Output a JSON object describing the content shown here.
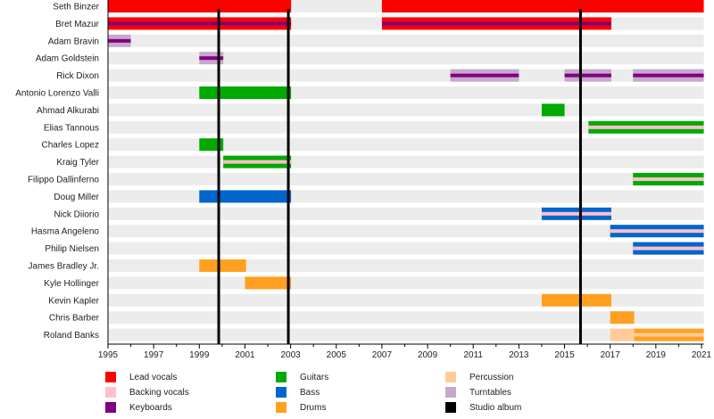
{
  "chart_data": {
    "type": "timeline",
    "title": "",
    "xlabel": "",
    "ylabel": "",
    "xlim": [
      1995,
      2021.1
    ],
    "x_ticks": [
      "1995",
      "1997",
      "1999",
      "2001",
      "2003",
      "2005",
      "2007",
      "2009",
      "2011",
      "2013",
      "2015",
      "2017",
      "2019",
      "2021"
    ],
    "grid": "alternating row bands",
    "colors": {
      "Lead vocals": "#ff0000",
      "Backing vocals": "#ffc0cb",
      "Keyboards": "#800080",
      "Guitars": "#00aa00",
      "Bass": "#0066cc",
      "Drums": "#ffa020",
      "Percussion": "#ffcc99",
      "Turntables": "#c8a8cc",
      "Studio album": "#000000"
    },
    "members": [
      {
        "name": "Seth Binzer",
        "bars": [
          {
            "role": "Lead vocals",
            "start": 1995,
            "end": 2003.02
          },
          {
            "role": "Lead vocals",
            "start": 2007,
            "end": 2021.1
          }
        ]
      },
      {
        "name": "Bret Mazur",
        "bars": [
          {
            "role": "Lead vocals",
            "start": 1995,
            "end": 2003.02,
            "overlay": "Keyboards"
          },
          {
            "role": "Lead vocals",
            "start": 2007,
            "end": 2017.05,
            "overlay": "Keyboards"
          }
        ]
      },
      {
        "name": "Adam Bravin",
        "bars": [
          {
            "role": "Turntables",
            "start": 1995,
            "end": 1996,
            "overlay": "Keyboards"
          }
        ]
      },
      {
        "name": "Adam Goldstein",
        "bars": [
          {
            "role": "Turntables",
            "start": 1999,
            "end": 2000.05,
            "overlay": "Keyboards"
          }
        ]
      },
      {
        "name": "Rick Dixon",
        "bars": [
          {
            "role": "Turntables",
            "start": 2010,
            "end": 2013,
            "overlay": "Keyboards"
          },
          {
            "role": "Turntables",
            "start": 2015,
            "end": 2017.05,
            "overlay": "Keyboards"
          },
          {
            "role": "Turntables",
            "start": 2018,
            "end": 2021.1,
            "overlay": "Keyboards"
          }
        ]
      },
      {
        "name": "Antonio Lorenzo Valli",
        "bars": [
          {
            "role": "Guitars",
            "start": 1999,
            "end": 2003.02
          }
        ]
      },
      {
        "name": "Ahmad Alkurabi",
        "bars": [
          {
            "role": "Guitars",
            "start": 2014,
            "end": 2015
          }
        ]
      },
      {
        "name": "Elias Tannous",
        "bars": [
          {
            "role": "Guitars",
            "start": 2016.05,
            "end": 2021.1,
            "overlay": "Backing vocals"
          }
        ]
      },
      {
        "name": "Charles Lopez",
        "bars": [
          {
            "role": "Guitars",
            "start": 1999,
            "end": 2000.05
          }
        ]
      },
      {
        "name": "Kraig Tyler",
        "bars": [
          {
            "role": "Guitars",
            "start": 2000.05,
            "end": 2003.02,
            "overlay": "Backing vocals"
          }
        ]
      },
      {
        "name": "Filippo Dallinferno",
        "bars": [
          {
            "role": "Guitars",
            "start": 2018,
            "end": 2021.1,
            "overlay": "Backing vocals"
          }
        ]
      },
      {
        "name": "Doug Miller",
        "bars": [
          {
            "role": "Bass",
            "start": 1999,
            "end": 2003.02
          }
        ]
      },
      {
        "name": "Nick Diiorio",
        "bars": [
          {
            "role": "Bass",
            "start": 2014,
            "end": 2017.05,
            "overlay": "Backing vocals"
          }
        ]
      },
      {
        "name": "Hasma Angeleno",
        "bars": [
          {
            "role": "Bass",
            "start": 2017,
            "end": 2021.1,
            "overlay": "Backing vocals"
          }
        ]
      },
      {
        "name": "Philip Nielsen",
        "bars": [
          {
            "role": "Bass",
            "start": 2018,
            "end": 2021.1,
            "overlay": "Backing vocals"
          }
        ]
      },
      {
        "name": "James Bradley Jr.",
        "bars": [
          {
            "role": "Drums",
            "start": 1999,
            "end": 2001.05
          }
        ]
      },
      {
        "name": "Kyle Hollinger",
        "bars": [
          {
            "role": "Drums",
            "start": 2001,
            "end": 2003.02
          }
        ]
      },
      {
        "name": "Kevin Kapler",
        "bars": [
          {
            "role": "Drums",
            "start": 2014,
            "end": 2017.05
          }
        ]
      },
      {
        "name": "Chris Barber",
        "bars": [
          {
            "role": "Drums",
            "start": 2017,
            "end": 2018.05
          }
        ]
      },
      {
        "name": "Roland Banks",
        "bars": [
          {
            "role": "Percussion",
            "start": 2017,
            "end": 2018.05
          },
          {
            "role": "Drums",
            "start": 2018.05,
            "end": 2021.1,
            "overlay": "Percussion"
          }
        ]
      }
    ],
    "studio_albums": [
      1999.85,
      2002.9,
      2015.7
    ],
    "legend": {
      "placement": "bottom",
      "columns": [
        [
          "Lead vocals",
          "Backing vocals",
          "Keyboards"
        ],
        [
          "Guitars",
          "Bass",
          "Drums"
        ],
        [
          "Percussion",
          "Turntables",
          "Studio album"
        ]
      ]
    }
  }
}
